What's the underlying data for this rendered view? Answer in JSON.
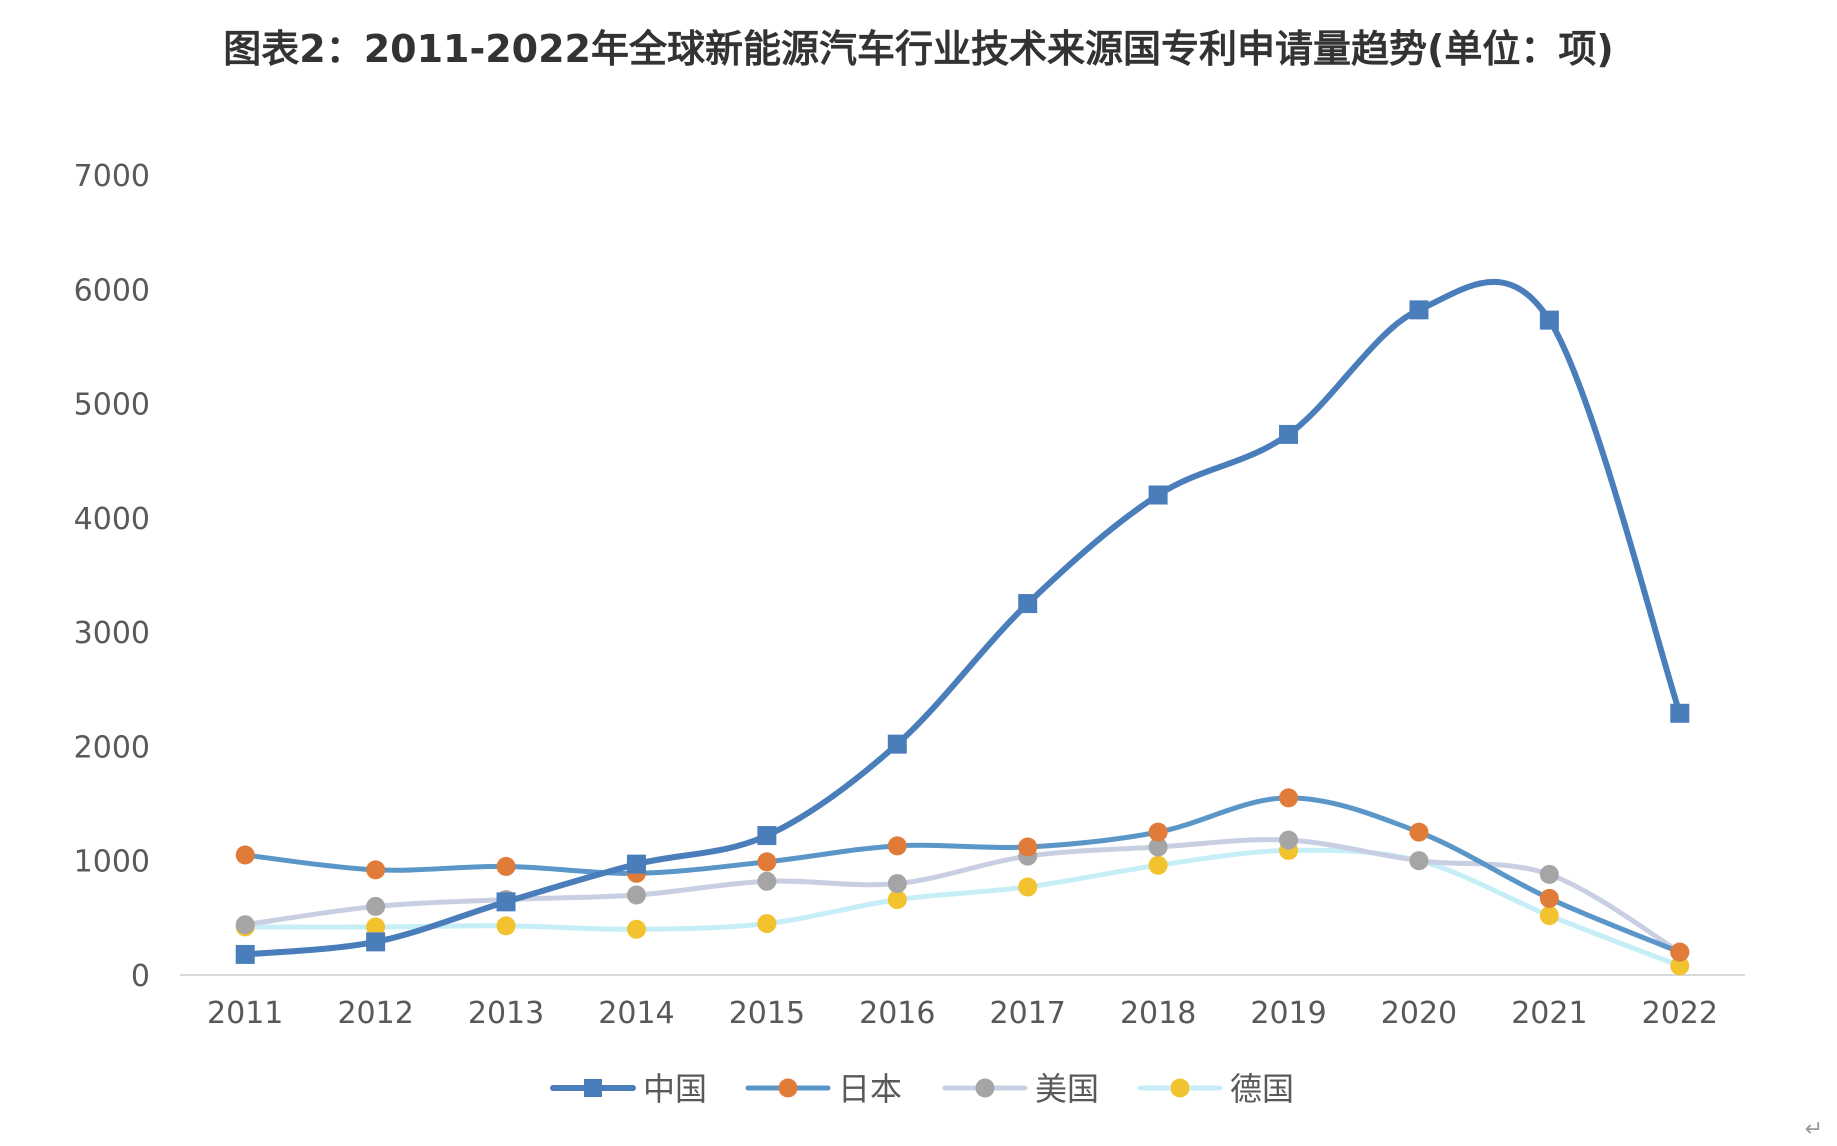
{
  "chart_data": {
    "type": "line",
    "title": "图表2：2011-2022年全球新能源汽车行业技术来源国专利申请量趋势(单位：项)",
    "xlabel": "",
    "ylabel": "",
    "categories": [
      "2011",
      "2012",
      "2013",
      "2014",
      "2015",
      "2016",
      "2017",
      "2018",
      "2019",
      "2020",
      "2021",
      "2022"
    ],
    "ylim": [
      0,
      7000
    ],
    "yticks": [
      "0",
      "1000",
      "2000",
      "3000",
      "4000",
      "5000",
      "6000",
      "7000"
    ],
    "grid": false,
    "legend_position": "bottom",
    "series": [
      {
        "name": "中国",
        "marker": "square",
        "color": "#4a7ebb",
        "values": [
          180,
          290,
          640,
          970,
          1220,
          2020,
          3250,
          4200,
          4730,
          5820,
          5730,
          2290
        ]
      },
      {
        "name": "日本",
        "marker": "circle",
        "color": "#5b96c8",
        "marker_color": "#e07b39",
        "values": [
          1050,
          920,
          950,
          890,
          990,
          1130,
          1120,
          1250,
          1550,
          1250,
          670,
          200
        ]
      },
      {
        "name": "美国",
        "marker": "circle",
        "color": "#c9cfe3",
        "marker_color": "#a5a5a5",
        "values": [
          440,
          600,
          660,
          700,
          820,
          800,
          1040,
          1120,
          1180,
          1000,
          880,
          200
        ]
      },
      {
        "name": "德国",
        "marker": "circle",
        "color": "#c6eef6",
        "marker_color": "#f2c32e",
        "values": [
          420,
          420,
          430,
          400,
          450,
          660,
          770,
          960,
          1090,
          1000,
          520,
          80
        ]
      }
    ]
  },
  "corner_symbol": "↵"
}
